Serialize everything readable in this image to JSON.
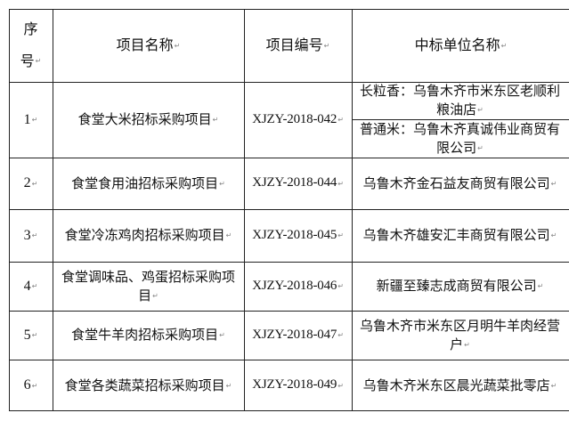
{
  "table": {
    "headers": {
      "seq": [
        "序",
        "号"
      ],
      "project_name": "项目名称",
      "project_code": "项目编号",
      "winner": "中标单位名称"
    },
    "rows": [
      {
        "seq": "1",
        "name": "食堂大米招标采购项目",
        "code": "XJZY-2018-042",
        "winners": [
          "长粒香：乌鲁木齐市米东区老顺利粮油店",
          "普通米：乌鲁木齐真诚伟业商贸有限公司"
        ]
      },
      {
        "seq": "2",
        "name": "食堂食用油招标采购项目",
        "code": "XJZY-2018-044",
        "winners": [
          "乌鲁木齐金石益友商贸有限公司"
        ]
      },
      {
        "seq": "3",
        "name": "食堂冷冻鸡肉招标采购项目",
        "code": "XJZY-2018-045",
        "winners": [
          "乌鲁木齐雄安汇丰商贸有限公司"
        ]
      },
      {
        "seq": "4",
        "name": "食堂调味品、鸡蛋招标采购项目",
        "code": "XJZY-2018-046",
        "winners": [
          "新疆至臻志成商贸有限公司"
        ]
      },
      {
        "seq": "5",
        "name": "食堂牛羊肉招标采购项目",
        "code": "XJZY-2018-047",
        "winners": [
          "乌鲁木齐市米东区月明牛羊肉经营户"
        ]
      },
      {
        "seq": "6",
        "name": "食堂各类蔬菜招标采购项目",
        "code": "XJZY-2018-049",
        "winners": [
          "乌鲁木齐米东区晨光蔬菜批零店"
        ]
      }
    ]
  }
}
